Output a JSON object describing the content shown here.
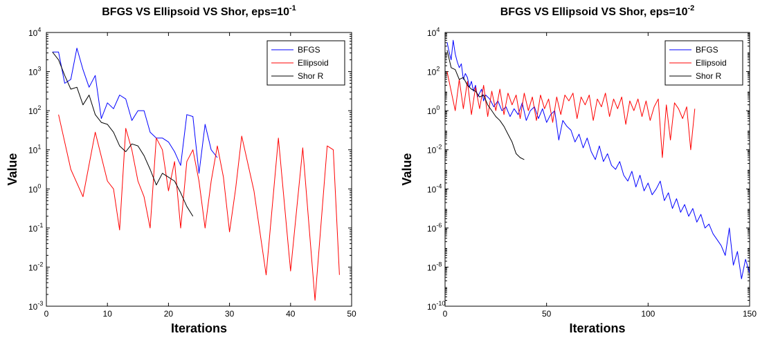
{
  "chart_data": [
    {
      "type": "line",
      "title": "BFGS VS Ellipsoid VS Shor, eps=10",
      "title_exponent": "-1",
      "xlabel": "Iterations",
      "ylabel": "Value",
      "xlim": [
        0,
        50
      ],
      "ylim_log10": [
        -3,
        4
      ],
      "yscale": "log",
      "xticks": [
        0,
        10,
        20,
        30,
        40,
        50
      ],
      "xtick_labels": [
        "0",
        "10",
        "20",
        "30",
        "40",
        "50"
      ],
      "yticks_log10": [
        -3,
        -2,
        -1,
        0,
        1,
        2,
        3,
        4
      ],
      "ytick_base": "10",
      "ytick_exponents": [
        "-3",
        "-2",
        "-1",
        "0",
        "1",
        "2",
        "3",
        "4"
      ],
      "grid": false,
      "legend_position": "top-right",
      "series": [
        {
          "name": "BFGS",
          "color": "#0000ff",
          "x": [
            1,
            2,
            3,
            4,
            5,
            6,
            7,
            8,
            9,
            10,
            11,
            12,
            13,
            14,
            15,
            16,
            17,
            18,
            19,
            20,
            21,
            22,
            23,
            24,
            25,
            26,
            27,
            28
          ],
          "y_log10": [
            3.5,
            3.5,
            2.7,
            2.8,
            3.6,
            3.05,
            2.6,
            2.9,
            1.8,
            2.2,
            2.05,
            2.4,
            2.3,
            1.75,
            2.0,
            2.0,
            1.45,
            1.3,
            1.3,
            1.2,
            0.95,
            0.6,
            1.9,
            1.85,
            0.4,
            1.65,
            1.0,
            0.8
          ]
        },
        {
          "name": "Ellipsoid",
          "color": "#ff0000",
          "x": [
            2,
            4,
            6,
            8,
            10,
            11,
            12,
            13,
            14,
            15,
            16,
            17,
            18,
            19,
            20,
            21,
            22,
            23,
            24,
            25,
            26,
            27,
            28,
            29,
            30,
            31,
            32,
            34,
            36,
            38,
            40,
            42,
            44,
            46,
            47,
            48
          ],
          "y_log10": [
            1.9,
            0.5,
            -0.2,
            1.45,
            0.2,
            0.0,
            -1.05,
            1.55,
            1.0,
            0.2,
            -0.2,
            -1.0,
            1.3,
            1.0,
            -0.05,
            0.7,
            -1.0,
            0.7,
            1.0,
            0.2,
            -1.0,
            0.2,
            1.1,
            0.3,
            -1.1,
            0.0,
            1.35,
            -0.05,
            -2.2,
            1.3,
            -2.1,
            1.05,
            -2.85,
            1.1,
            1.0,
            -2.2
          ]
        },
        {
          "name": "Shor R",
          "color": "#000000",
          "x": [
            1,
            2,
            3,
            4,
            5,
            6,
            7,
            8,
            9,
            10,
            11,
            12,
            13,
            14,
            15,
            16,
            17,
            18,
            19,
            20,
            21,
            22,
            23,
            24
          ],
          "y_log10": [
            3.5,
            3.3,
            2.9,
            2.55,
            2.6,
            2.15,
            2.4,
            1.9,
            1.7,
            1.65,
            1.45,
            1.1,
            0.95,
            1.15,
            1.1,
            0.85,
            0.5,
            0.1,
            0.4,
            0.3,
            0.2,
            -0.1,
            -0.45,
            -0.7
          ]
        }
      ]
    },
    {
      "type": "line",
      "title": "BFGS VS Ellipsoid VS Shor, eps=10",
      "title_exponent": "-2",
      "xlabel": "Iterations",
      "ylabel": "Value",
      "xlim": [
        0,
        150
      ],
      "ylim_log10": [
        -10,
        4
      ],
      "yscale": "log",
      "xticks": [
        0,
        50,
        100,
        150
      ],
      "xtick_labels": [
        "0",
        "50",
        "100",
        "150"
      ],
      "yticks_log10": [
        -10,
        -8,
        -6,
        -4,
        -2,
        0,
        2,
        4
      ],
      "ytick_base": "10",
      "ytick_exponents": [
        "-10",
        "-8",
        "-6",
        "-4",
        "-2",
        "0",
        "2",
        "4"
      ],
      "grid": false,
      "legend_position": "top-right",
      "series": [
        {
          "name": "BFGS",
          "color": "#0000ff",
          "x": [
            1,
            2,
            3,
            4,
            5,
            6,
            7,
            8,
            9,
            10,
            11,
            12,
            13,
            14,
            15,
            16,
            17,
            18,
            19,
            20,
            22,
            24,
            26,
            28,
            30,
            32,
            34,
            36,
            38,
            40,
            42,
            44,
            46,
            48,
            50,
            52,
            54,
            56,
            58,
            60,
            62,
            64,
            66,
            68,
            70,
            72,
            74,
            76,
            78,
            80,
            82,
            84,
            86,
            88,
            90,
            92,
            94,
            96,
            98,
            100,
            102,
            104,
            106,
            108,
            110,
            112,
            114,
            116,
            118,
            120,
            122,
            124,
            126,
            128,
            130,
            132,
            134,
            136,
            138,
            140,
            142,
            144,
            146,
            148,
            150
          ],
          "y_log10": [
            3.5,
            3.0,
            2.6,
            3.6,
            2.9,
            2.5,
            2.2,
            2.4,
            1.6,
            1.9,
            1.7,
            1.2,
            1.5,
            1.0,
            1.3,
            0.7,
            0.9,
            1.1,
            0.5,
            0.8,
            0.6,
            0.2,
            0.5,
            0.0,
            0.2,
            -0.3,
            0.1,
            -0.2,
            0.4,
            -0.5,
            0.0,
            0.2,
            -0.4,
            0.1,
            -0.6,
            -0.2,
            0.0,
            -1.5,
            -0.5,
            -0.8,
            -1.0,
            -1.6,
            -1.2,
            -1.9,
            -1.4,
            -2.1,
            -2.5,
            -1.8,
            -2.6,
            -2.2,
            -2.8,
            -3.0,
            -2.6,
            -3.3,
            -3.6,
            -3.1,
            -3.9,
            -3.3,
            -4.1,
            -3.7,
            -4.3,
            -4.0,
            -3.6,
            -4.6,
            -4.2,
            -5.0,
            -4.5,
            -5.2,
            -4.8,
            -5.4,
            -5.0,
            -5.7,
            -5.3,
            -6.0,
            -5.8,
            -6.3,
            -6.6,
            -6.9,
            -7.4,
            -6.0,
            -7.9,
            -7.2,
            -8.6,
            -7.6,
            -8.3
          ]
        },
        {
          "name": "Ellipsoid",
          "color": "#ff0000",
          "x": [
            1,
            3,
            5,
            7,
            9,
            11,
            13,
            15,
            17,
            19,
            21,
            23,
            25,
            27,
            29,
            31,
            33,
            35,
            37,
            39,
            41,
            43,
            45,
            47,
            49,
            51,
            53,
            55,
            57,
            59,
            61,
            63,
            65,
            67,
            69,
            71,
            73,
            75,
            77,
            79,
            81,
            83,
            85,
            87,
            89,
            91,
            93,
            95,
            97,
            99,
            101,
            103,
            105,
            107,
            109,
            111,
            113,
            115,
            117,
            119,
            121,
            123
          ],
          "y_log10": [
            2.0,
            1.0,
            0.0,
            1.6,
            0.1,
            1.5,
            -0.2,
            1.2,
            0.1,
            1.3,
            -0.3,
            1.0,
            0.0,
            1.1,
            -0.2,
            0.9,
            0.3,
            0.8,
            -0.4,
            0.9,
            0.0,
            0.7,
            -0.5,
            0.8,
            0.1,
            0.6,
            -0.6,
            0.7,
            -0.2,
            0.8,
            0.5,
            0.9,
            -0.4,
            0.7,
            0.3,
            0.8,
            -0.5,
            0.6,
            0.2,
            0.9,
            -0.3,
            0.6,
            0.1,
            0.7,
            -0.7,
            0.5,
            0.0,
            0.6,
            -0.3,
            0.5,
            -0.5,
            0.2,
            0.6,
            -2.4,
            0.3,
            -1.5,
            0.4,
            0.1,
            -0.4,
            0.2,
            -2.0,
            0.1
          ]
        },
        {
          "name": "Shor R",
          "color": "#000000",
          "x": [
            1,
            3,
            5,
            7,
            9,
            11,
            13,
            15,
            17,
            19,
            21,
            23,
            25,
            27,
            29,
            31,
            33,
            35,
            37,
            39
          ],
          "y_log10": [
            3.1,
            2.2,
            2.1,
            1.6,
            1.7,
            1.3,
            1.1,
            1.0,
            0.7,
            0.8,
            0.3,
            0.0,
            -0.3,
            -0.5,
            -0.8,
            -1.2,
            -1.6,
            -2.2,
            -2.4,
            -2.5
          ]
        }
      ]
    }
  ]
}
